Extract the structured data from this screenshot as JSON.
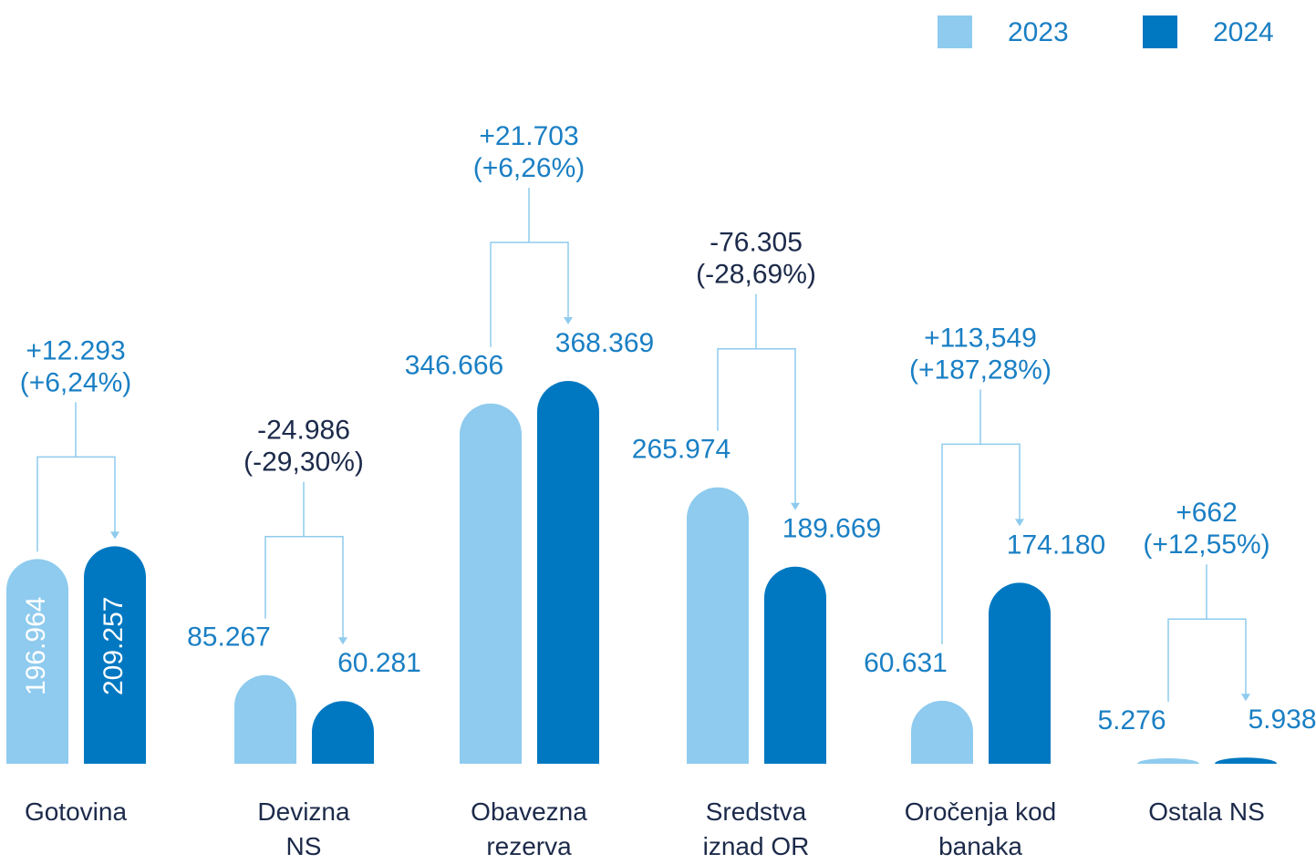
{
  "chart_data": {
    "type": "bar",
    "categories": [
      "Gotovina",
      "Devizna\nNS",
      "Obavezna\nrezerva",
      "Sredstva\niznad OR",
      "Oročenja kod\nbanaka",
      "Ostala NS"
    ],
    "series": [
      {
        "name": "2023",
        "color": "#8ecbee",
        "values": [
          196964,
          85267,
          346666,
          265974,
          60631,
          5276
        ],
        "value_labels": [
          "196.964",
          "85.267",
          "346.666",
          "265.974",
          "60.631",
          "5.276"
        ]
      },
      {
        "name": "2024",
        "color": "#0078c1",
        "values": [
          209257,
          60281,
          368369,
          189669,
          174180,
          5938
        ],
        "value_labels": [
          "209.257",
          "60.281",
          "368.369",
          "189.669",
          "174.180",
          "5.938"
        ]
      }
    ],
    "changes": [
      12293,
      -24986,
      21703,
      -76305,
      113549,
      662
    ],
    "change_labels": [
      "+12.293",
      "-24.986",
      "+21.703",
      "-76.305",
      "+113,549",
      "+662"
    ],
    "change_pcts": [
      6.24,
      -29.3,
      6.26,
      -28.69,
      187.28,
      12.55
    ],
    "change_pct_labels": [
      "(+6,24%)",
      "(-29,30%)",
      "(+6,26%)",
      "(-28,69%)",
      "(+187,28%)",
      "(+12,55%)"
    ],
    "legend": "top-right"
  }
}
